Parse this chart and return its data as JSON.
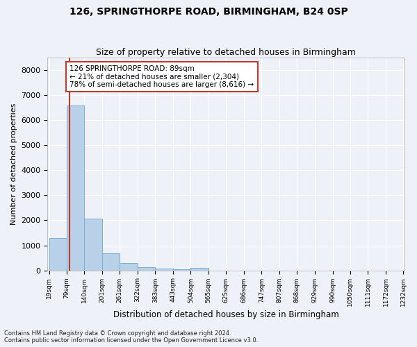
{
  "title": "126, SPRINGTHORPE ROAD, BIRMINGHAM, B24 0SP",
  "subtitle": "Size of property relative to detached houses in Birmingham",
  "xlabel": "Distribution of detached houses by size in Birmingham",
  "ylabel": "Number of detached properties",
  "footnote1": "Contains HM Land Registry data © Crown copyright and database right 2024.",
  "footnote2": "Contains public sector information licensed under the Open Government Licence v3.0.",
  "annotation_title": "126 SPRINGTHORPE ROAD: 89sqm",
  "annotation_line1": "← 21% of detached houses are smaller (2,304)",
  "annotation_line2": "78% of semi-detached houses are larger (8,616) →",
  "property_size": 89,
  "bar_edges": [
    19,
    79,
    140,
    201,
    261,
    322,
    383,
    443,
    504,
    565,
    625,
    686,
    747,
    807,
    868,
    929,
    990,
    1050,
    1111,
    1172,
    1232
  ],
  "bar_heights": [
    1300,
    6580,
    2060,
    680,
    290,
    130,
    75,
    50,
    100,
    0,
    0,
    0,
    0,
    0,
    0,
    0,
    0,
    0,
    0,
    0
  ],
  "bar_color": "#b8d0e8",
  "bar_edge_color": "#7bafd4",
  "vline_color": "#c0392b",
  "annotation_box_color": "#c0392b",
  "background_color": "#eef2f8",
  "grid_color": "#ffffff",
  "ylim": [
    0,
    8500
  ],
  "yticks": [
    0,
    1000,
    2000,
    3000,
    4000,
    5000,
    6000,
    7000,
    8000
  ],
  "title_fontsize": 10,
  "subtitle_fontsize": 9
}
